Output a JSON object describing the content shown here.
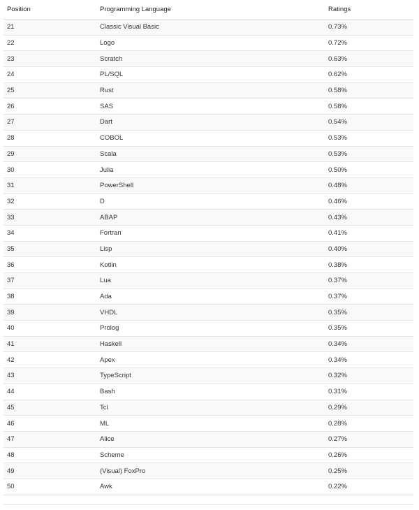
{
  "table": {
    "header": [
      "Position",
      "Programming Language",
      "Ratings"
    ],
    "rows": [
      [
        "21",
        "Classic Visual Basic",
        "0.73%"
      ],
      [
        "22",
        "Logo",
        "0.72%"
      ],
      [
        "23",
        "Scratch",
        "0.63%"
      ],
      [
        "24",
        "PL/SQL",
        "0.62%"
      ],
      [
        "25",
        "Rust",
        "0.58%"
      ],
      [
        "26",
        "SAS",
        "0.58%"
      ],
      [
        "27",
        "Dart",
        "0.54%"
      ],
      [
        "28",
        "COBOL",
        "0.53%"
      ],
      [
        "29",
        "Scala",
        "0.53%"
      ],
      [
        "30",
        "Julia",
        "0.50%"
      ],
      [
        "31",
        "PowerShell",
        "0.48%"
      ],
      [
        "32",
        "D",
        "0.46%"
      ],
      [
        "33",
        "ABAP",
        "0.43%"
      ],
      [
        "34",
        "Fortran",
        "0.41%"
      ],
      [
        "35",
        "Lisp",
        "0.40%"
      ],
      [
        "36",
        "Kotlin",
        "0.38%"
      ],
      [
        "37",
        "Lua",
        "0.37%"
      ],
      [
        "38",
        "Ada",
        "0.37%"
      ],
      [
        "39",
        "VHDL",
        "0.35%"
      ],
      [
        "40",
        "Prolog",
        "0.35%"
      ],
      [
        "41",
        "Haskell",
        "0.34%"
      ],
      [
        "42",
        "Apex",
        "0.34%"
      ],
      [
        "43",
        "TypeScript",
        "0.32%"
      ],
      [
        "44",
        "Bash",
        "0.31%"
      ],
      [
        "45",
        "Tcl",
        "0.29%"
      ],
      [
        "46",
        "ML",
        "0.28%"
      ],
      [
        "47",
        "Alice",
        "0.27%"
      ],
      [
        "48",
        "Scheme",
        "0.26%"
      ],
      [
        "49",
        "(Visual) FoxPro",
        "0.25%"
      ],
      [
        "50",
        "Awk",
        "0.22%"
      ]
    ]
  }
}
